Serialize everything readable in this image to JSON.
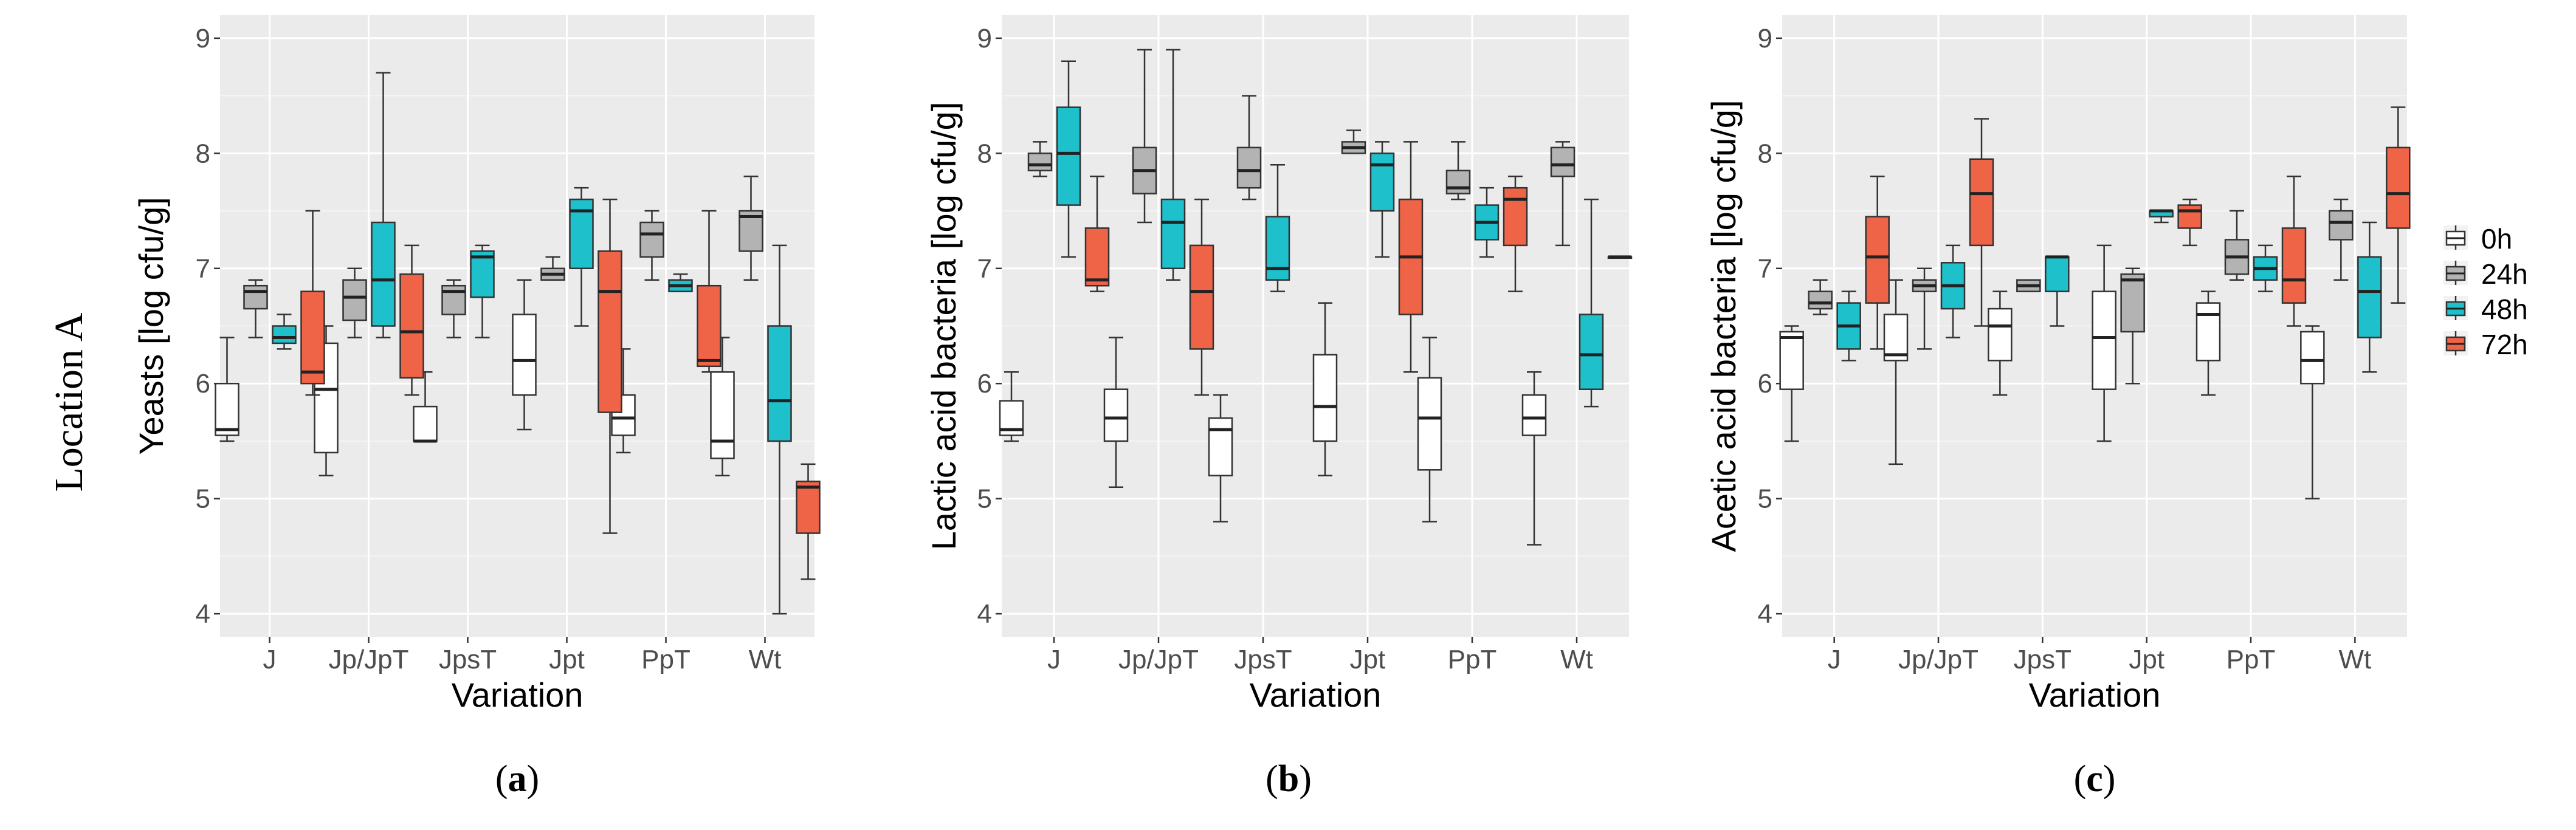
{
  "figure": {
    "row_label": "Location A",
    "colors": {
      "0h": "#ffffff",
      "24h": "#b3b3b3",
      "48h": "#1ec0cc",
      "72h": "#ef6347",
      "panel_bg": "#ebebeb",
      "grid": "#ffffff"
    }
  },
  "legend": {
    "items": [
      {
        "label": "0h",
        "color": "#ffffff"
      },
      {
        "label": "24h",
        "color": "#b3b3b3"
      },
      {
        "label": "48h",
        "color": "#1ec0cc"
      },
      {
        "label": "72h",
        "color": "#ef6347"
      }
    ]
  },
  "chart_data": [
    {
      "type": "boxplot",
      "panel_label": "(a)",
      "panel_letter": "a",
      "ylabel": "Yeasts [log cfu/g]",
      "xlabel": "Variation",
      "ylim": [
        3.8,
        9.2
      ],
      "yticks": [
        4,
        5,
        6,
        7,
        8,
        9
      ],
      "categories": [
        "J",
        "Jp/JpT",
        "JpsT",
        "Jpt",
        "PpT",
        "Wt"
      ],
      "series": [
        {
          "name": "0h",
          "boxes": [
            {
              "min": 5.5,
              "q1": 5.55,
              "median": 5.6,
              "q3": 6.0,
              "max": 6.4
            },
            {
              "min": 5.2,
              "q1": 5.4,
              "median": 5.95,
              "q3": 6.35,
              "max": 6.5
            },
            {
              "min": 5.5,
              "q1": 5.5,
              "median": 5.5,
              "q3": 5.8,
              "max": 6.1
            },
            {
              "min": 5.6,
              "q1": 5.9,
              "median": 6.2,
              "q3": 6.6,
              "max": 6.9
            },
            {
              "min": 5.4,
              "q1": 5.55,
              "median": 5.7,
              "q3": 5.9,
              "max": 6.3
            },
            {
              "min": 5.2,
              "q1": 5.35,
              "median": 5.5,
              "q3": 6.1,
              "max": 6.4
            }
          ]
        },
        {
          "name": "24h",
          "boxes": [
            {
              "min": 6.4,
              "q1": 6.65,
              "median": 6.8,
              "q3": 6.85,
              "max": 6.9
            },
            {
              "min": 6.4,
              "q1": 6.55,
              "median": 6.75,
              "q3": 6.9,
              "max": 7.0
            },
            {
              "min": 6.4,
              "q1": 6.6,
              "median": 6.8,
              "q3": 6.85,
              "max": 6.9
            },
            {
              "min": 6.9,
              "q1": 6.9,
              "median": 6.95,
              "q3": 7.0,
              "max": 7.1
            },
            {
              "min": 6.9,
              "q1": 7.1,
              "median": 7.3,
              "q3": 7.4,
              "max": 7.5
            },
            {
              "min": 6.9,
              "q1": 7.15,
              "median": 7.45,
              "q3": 7.5,
              "max": 7.8
            }
          ]
        },
        {
          "name": "48h",
          "boxes": [
            {
              "min": 6.3,
              "q1": 6.35,
              "median": 6.4,
              "q3": 6.5,
              "max": 6.6
            },
            {
              "min": 6.4,
              "q1": 6.5,
              "median": 6.9,
              "q3": 7.4,
              "max": 8.7
            },
            {
              "min": 6.4,
              "q1": 6.75,
              "median": 7.1,
              "q3": 7.15,
              "max": 7.2
            },
            {
              "min": 6.5,
              "q1": 7.0,
              "median": 7.5,
              "q3": 7.6,
              "max": 7.7
            },
            {
              "min": 6.8,
              "q1": 6.8,
              "median": 6.85,
              "q3": 6.9,
              "max": 6.95
            },
            {
              "min": 4.0,
              "q1": 5.5,
              "median": 5.85,
              "q3": 6.5,
              "max": 7.2
            }
          ]
        },
        {
          "name": "72h",
          "boxes": [
            {
              "min": 5.9,
              "q1": 6.0,
              "median": 6.1,
              "q3": 6.8,
              "max": 7.5
            },
            {
              "min": 5.9,
              "q1": 6.05,
              "median": 6.45,
              "q3": 6.95,
              "max": 7.2
            },
            null,
            {
              "min": 4.7,
              "q1": 5.75,
              "median": 6.8,
              "q3": 7.15,
              "max": 7.6
            },
            {
              "min": 6.1,
              "q1": 6.15,
              "median": 6.2,
              "q3": 6.85,
              "max": 7.5
            },
            {
              "min": 4.3,
              "q1": 4.7,
              "median": 5.1,
              "q3": 5.15,
              "max": 5.3
            }
          ]
        }
      ]
    },
    {
      "type": "boxplot",
      "panel_label": "(b)",
      "panel_letter": "b",
      "ylabel": "Lactic acid bacteria [log cfu/g]",
      "xlabel": "Variation",
      "ylim": [
        3.8,
        9.2
      ],
      "yticks": [
        4,
        5,
        6,
        7,
        8,
        9
      ],
      "categories": [
        "J",
        "Jp/JpT",
        "JpsT",
        "Jpt",
        "PpT",
        "Wt"
      ],
      "series": [
        {
          "name": "0h",
          "boxes": [
            {
              "min": 5.5,
              "q1": 5.55,
              "median": 5.6,
              "q3": 5.85,
              "max": 6.1
            },
            {
              "min": 5.1,
              "q1": 5.5,
              "median": 5.7,
              "q3": 5.95,
              "max": 6.4
            },
            {
              "min": 4.8,
              "q1": 5.2,
              "median": 5.6,
              "q3": 5.7,
              "max": 5.9
            },
            {
              "min": 5.2,
              "q1": 5.5,
              "median": 5.8,
              "q3": 6.25,
              "max": 6.7
            },
            {
              "min": 4.8,
              "q1": 5.25,
              "median": 5.7,
              "q3": 6.05,
              "max": 6.4
            },
            {
              "min": 4.6,
              "q1": 5.55,
              "median": 5.7,
              "q3": 5.9,
              "max": 6.1
            }
          ]
        },
        {
          "name": "24h",
          "boxes": [
            {
              "min": 7.8,
              "q1": 7.85,
              "median": 7.9,
              "q3": 8.0,
              "max": 8.1
            },
            {
              "min": 7.4,
              "q1": 7.65,
              "median": 7.85,
              "q3": 8.05,
              "max": 8.9
            },
            {
              "min": 7.6,
              "q1": 7.7,
              "median": 7.85,
              "q3": 8.05,
              "max": 8.5
            },
            {
              "min": 8.0,
              "q1": 8.0,
              "median": 8.05,
              "q3": 8.1,
              "max": 8.2
            },
            {
              "min": 7.6,
              "q1": 7.65,
              "median": 7.7,
              "q3": 7.85,
              "max": 8.1
            },
            {
              "min": 7.2,
              "q1": 7.8,
              "median": 7.9,
              "q3": 8.05,
              "max": 8.1
            }
          ]
        },
        {
          "name": "48h",
          "boxes": [
            {
              "min": 7.1,
              "q1": 7.55,
              "median": 8.0,
              "q3": 8.4,
              "max": 8.8
            },
            {
              "min": 6.9,
              "q1": 7.0,
              "median": 7.4,
              "q3": 7.6,
              "max": 8.9
            },
            {
              "min": 6.8,
              "q1": 6.9,
              "median": 7.0,
              "q3": 7.45,
              "max": 7.9
            },
            {
              "min": 7.1,
              "q1": 7.5,
              "median": 7.9,
              "q3": 8.0,
              "max": 8.1
            },
            {
              "min": 7.1,
              "q1": 7.25,
              "median": 7.4,
              "q3": 7.55,
              "max": 7.7
            },
            {
              "min": 5.8,
              "q1": 5.95,
              "median": 6.25,
              "q3": 6.6,
              "max": 7.6
            }
          ]
        },
        {
          "name": "72h",
          "boxes": [
            {
              "min": 6.8,
              "q1": 6.85,
              "median": 6.9,
              "q3": 7.35,
              "max": 7.8
            },
            {
              "min": 5.9,
              "q1": 6.3,
              "median": 6.8,
              "q3": 7.2,
              "max": 7.6
            },
            null,
            {
              "min": 6.1,
              "q1": 6.6,
              "median": 7.1,
              "q3": 7.6,
              "max": 8.1
            },
            {
              "min": 6.8,
              "q1": 7.2,
              "median": 7.6,
              "q3": 7.7,
              "max": 7.8
            },
            {
              "min": 7.1,
              "q1": 7.1,
              "median": 7.1,
              "q3": 7.1,
              "max": 7.1
            }
          ]
        }
      ]
    },
    {
      "type": "boxplot",
      "panel_label": "(c)",
      "panel_letter": "c",
      "ylabel": "Acetic acid bacteria [log cfu/g]",
      "xlabel": "Variation",
      "ylim": [
        3.8,
        9.2
      ],
      "yticks": [
        4,
        5,
        6,
        7,
        8,
        9
      ],
      "categories": [
        "J",
        "Jp/JpT",
        "JpsT",
        "Jpt",
        "PpT",
        "Wt"
      ],
      "series": [
        {
          "name": "0h",
          "boxes": [
            {
              "min": 5.5,
              "q1": 5.95,
              "median": 6.4,
              "q3": 6.45,
              "max": 6.5
            },
            {
              "min": 5.3,
              "q1": 6.2,
              "median": 6.25,
              "q3": 6.6,
              "max": 6.9
            },
            {
              "min": 5.9,
              "q1": 6.2,
              "median": 6.5,
              "q3": 6.65,
              "max": 6.8
            },
            {
              "min": 5.5,
              "q1": 5.95,
              "median": 6.4,
              "q3": 6.8,
              "max": 7.2
            },
            {
              "min": 5.9,
              "q1": 6.2,
              "median": 6.6,
              "q3": 6.7,
              "max": 6.8
            },
            {
              "min": 5.0,
              "q1": 6.0,
              "median": 6.2,
              "q3": 6.45,
              "max": 6.5
            }
          ]
        },
        {
          "name": "24h",
          "boxes": [
            {
              "min": 6.6,
              "q1": 6.65,
              "median": 6.7,
              "q3": 6.8,
              "max": 6.9
            },
            {
              "min": 6.3,
              "q1": 6.8,
              "median": 6.85,
              "q3": 6.9,
              "max": 7.0
            },
            {
              "min": 6.8,
              "q1": 6.8,
              "median": 6.85,
              "q3": 6.9,
              "max": 6.9
            },
            {
              "min": 6.0,
              "q1": 6.45,
              "median": 6.9,
              "q3": 6.95,
              "max": 7.0
            },
            {
              "min": 6.9,
              "q1": 6.95,
              "median": 7.1,
              "q3": 7.25,
              "max": 7.5
            },
            {
              "min": 6.9,
              "q1": 7.25,
              "median": 7.4,
              "q3": 7.5,
              "max": 7.6
            }
          ]
        },
        {
          "name": "48h",
          "boxes": [
            {
              "min": 6.2,
              "q1": 6.3,
              "median": 6.5,
              "q3": 6.7,
              "max": 6.8
            },
            {
              "min": 6.4,
              "q1": 6.65,
              "median": 6.85,
              "q3": 7.05,
              "max": 7.2
            },
            {
              "min": 6.5,
              "q1": 6.8,
              "median": 7.1,
              "q3": 7.1,
              "max": 7.1
            },
            {
              "min": 7.4,
              "q1": 7.45,
              "median": 7.5,
              "q3": 7.5,
              "max": 7.5
            },
            {
              "min": 6.8,
              "q1": 6.9,
              "median": 7.0,
              "q3": 7.1,
              "max": 7.2
            },
            {
              "min": 6.1,
              "q1": 6.4,
              "median": 6.8,
              "q3": 7.1,
              "max": 7.4
            }
          ]
        },
        {
          "name": "72h",
          "boxes": [
            {
              "min": 6.3,
              "q1": 6.7,
              "median": 7.1,
              "q3": 7.45,
              "max": 7.8
            },
            {
              "min": 6.5,
              "q1": 7.2,
              "median": 7.65,
              "q3": 7.95,
              "max": 8.3
            },
            null,
            {
              "min": 7.2,
              "q1": 7.35,
              "median": 7.5,
              "q3": 7.55,
              "max": 7.6
            },
            {
              "min": 6.5,
              "q1": 6.7,
              "median": 6.9,
              "q3": 7.35,
              "max": 7.8
            },
            {
              "min": 6.7,
              "q1": 7.35,
              "median": 7.65,
              "q3": 8.05,
              "max": 8.4
            }
          ]
        }
      ]
    }
  ]
}
